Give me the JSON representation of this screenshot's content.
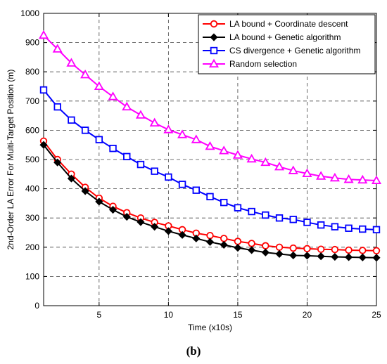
{
  "chart_data": {
    "type": "line",
    "xlabel": "Time (x10s)",
    "ylabel": "2nd-Order LA Error For Multi-Target Position (m)",
    "xlim": [
      1,
      25
    ],
    "ylim": [
      0,
      1000
    ],
    "xticks": [
      5,
      10,
      15,
      20,
      25
    ],
    "yticks": [
      0,
      100,
      200,
      300,
      400,
      500,
      600,
      700,
      800,
      900,
      1000
    ],
    "grid": true,
    "legend_position": "top-right",
    "caption": "(b)",
    "x": [
      1,
      2,
      3,
      4,
      5,
      6,
      7,
      8,
      9,
      10,
      11,
      12,
      13,
      14,
      15,
      16,
      17,
      18,
      19,
      20,
      21,
      22,
      23,
      24,
      25
    ],
    "series": [
      {
        "name": "LA bound + Coordinate descent",
        "color": "#ff0000",
        "marker": "circle",
        "values": [
          563,
          500,
          450,
          405,
          368,
          340,
          318,
          300,
          285,
          273,
          260,
          248,
          240,
          230,
          220,
          213,
          205,
          200,
          197,
          195,
          193,
          192,
          190,
          189,
          188
        ]
      },
      {
        "name": "LA bound + Genetic algorithm",
        "color": "#000000",
        "marker": "diamond",
        "values": [
          550,
          490,
          435,
          392,
          356,
          328,
          304,
          286,
          270,
          255,
          242,
          230,
          218,
          208,
          198,
          190,
          182,
          177,
          172,
          171,
          169,
          167,
          166,
          165,
          164
        ]
      },
      {
        "name": "CS divergence + Genetic algorithm",
        "color": "#0000ff",
        "marker": "square",
        "values": [
          738,
          680,
          635,
          600,
          568,
          538,
          510,
          483,
          460,
          440,
          415,
          395,
          373,
          353,
          335,
          322,
          310,
          300,
          295,
          285,
          276,
          270,
          265,
          262,
          260
        ]
      },
      {
        "name": "Random selection",
        "color": "#ff00ff",
        "marker": "triangle",
        "values": [
          925,
          878,
          830,
          790,
          750,
          715,
          680,
          652,
          625,
          602,
          585,
          568,
          545,
          530,
          515,
          502,
          490,
          475,
          462,
          452,
          443,
          437,
          432,
          430,
          428
        ]
      }
    ]
  }
}
